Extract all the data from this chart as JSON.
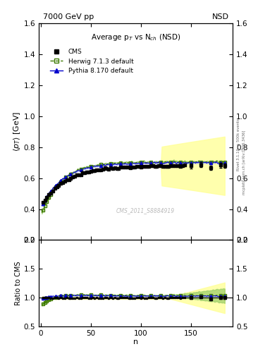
{
  "title_top_left": "7000 GeV pp",
  "title_top_right": "NSD",
  "plot_title": "Average p$_T$ vs N$_{ch}$ (NSD)",
  "xlabel": "n",
  "ylabel_main": "$\\langle p_T \\rangle$ [GeV]",
  "ylabel_ratio": "Ratio to CMS",
  "right_label": "mcplots.cern.ch [arXiv:1306.3436]",
  "right_label2": "Rivet 3.1.10, ≥ 500k events",
  "watermark": "CMS_2011_S8884919",
  "ylim_main": [
    0.2,
    1.6
  ],
  "ylim_ratio": [
    0.5,
    2.0
  ],
  "xlim": [
    -2,
    192
  ],
  "yticks_main": [
    0.2,
    0.4,
    0.6,
    0.8,
    1.0,
    1.2,
    1.4,
    1.6
  ],
  "yticks_ratio": [
    0.5,
    1.0,
    1.5,
    2.0
  ],
  "xticks": [
    0,
    50,
    100,
    150
  ],
  "cms_color": "#000000",
  "herwig_color": "#3d7a00",
  "pythia_color": "#0000cc",
  "cms_band_color": "#ffff99",
  "herwig_band_color": "#99cc66",
  "pythia_band_color": "#aaaaff"
}
